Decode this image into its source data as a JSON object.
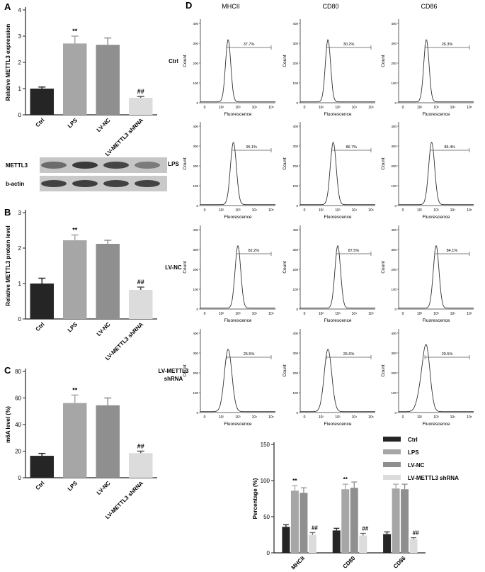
{
  "panel_labels": {
    "A": "A",
    "B": "B",
    "C": "C",
    "D": "D"
  },
  "colors": {
    "ctrl": "#252525",
    "lps": "#a6a6a6",
    "lvnc": "#8f8f8f",
    "shrna": "#dcdcdc",
    "text": "#222222"
  },
  "blot": {
    "labels": [
      "METTL3",
      "b-actin"
    ]
  },
  "flow": {
    "columns": [
      "MHCII",
      "CD80",
      "CD86"
    ],
    "rows": [
      "Ctrl",
      "LPS",
      "LV-NC",
      "LV-METTL3\nshRNA"
    ],
    "xlabel": "Fluorescence",
    "ylabel": "Count",
    "xticks": [
      "0",
      "10²",
      "10³",
      "10⁴",
      "10⁵"
    ],
    "percentages": [
      [
        "37.7%",
        "30.2%",
        "26.3%"
      ],
      [
        "95.1%",
        "86.7%",
        "86.4%"
      ],
      [
        "82.2%",
        "87.5%",
        "84.1%"
      ],
      [
        "25.5%",
        "25.6%",
        "20.5%"
      ]
    ],
    "ymax": [
      [
        400,
        400,
        400
      ],
      [
        400,
        400,
        400
      ],
      [
        400,
        400,
        400
      ],
      [
        400,
        400,
        400
      ]
    ]
  },
  "chart_data": [
    {
      "id": "A",
      "type": "bar",
      "categories": [
        "Ctrl",
        "LPS",
        "LV-NC",
        "LV-METTL3 shRNA"
      ],
      "values": [
        1.0,
        2.72,
        2.67,
        0.65
      ],
      "errors": [
        0.06,
        0.28,
        0.26,
        0.05
      ],
      "annotations": [
        "",
        "**",
        "",
        "##"
      ],
      "ylabel": "Relative METTL3 expression",
      "ylim": [
        0,
        4
      ],
      "yticks": [
        0,
        1,
        2,
        3,
        4
      ]
    },
    {
      "id": "B",
      "type": "bar",
      "categories": [
        "Ctrl",
        "LPS",
        "LV-NC",
        "LV-METTL3 shRNA"
      ],
      "values": [
        1.0,
        2.22,
        2.12,
        0.82
      ],
      "errors": [
        0.15,
        0.15,
        0.1,
        0.08
      ],
      "annotations": [
        "",
        "**",
        "",
        "##"
      ],
      "ylabel": "Relative METTL3 protein level",
      "ylim": [
        0,
        3
      ],
      "yticks": [
        0,
        1,
        2,
        3
      ]
    },
    {
      "id": "C",
      "type": "bar",
      "categories": [
        "Ctrl",
        "LPS",
        "LV-NC",
        "LV-METTL3 shRNA"
      ],
      "values": [
        16.5,
        56.2,
        54.5,
        18.5
      ],
      "errors": [
        1.8,
        6.0,
        5.5,
        1.5
      ],
      "annotations": [
        "",
        "**",
        "",
        "##"
      ],
      "ylabel": "m6A level (%)",
      "ylim": [
        0,
        80
      ],
      "yticks": [
        0,
        20,
        40,
        60,
        80
      ]
    },
    {
      "id": "D-bar",
      "type": "bar",
      "categories": [
        "MHCII",
        "CD80",
        "CD86"
      ],
      "series": [
        {
          "name": "Ctrl",
          "values": [
            36,
            31,
            26
          ],
          "errors": [
            3,
            3,
            3
          ]
        },
        {
          "name": "LPS",
          "values": [
            86,
            88,
            89
          ],
          "errors": [
            7,
            7,
            6
          ]
        },
        {
          "name": "LV-NC",
          "values": [
            83,
            90,
            88
          ],
          "errors": [
            7,
            8,
            7
          ]
        },
        {
          "name": "LV-METTL3 shRNA",
          "values": [
            25,
            24,
            19
          ],
          "errors": [
            3,
            3,
            2
          ]
        }
      ],
      "annotations": {
        "LPS": "**",
        "LV-METTL3 shRNA": "##"
      },
      "ylabel": "Percentage (%)",
      "ylim": [
        0,
        150
      ],
      "yticks": [
        0,
        50,
        100,
        150
      ],
      "legend": "top-right"
    }
  ]
}
